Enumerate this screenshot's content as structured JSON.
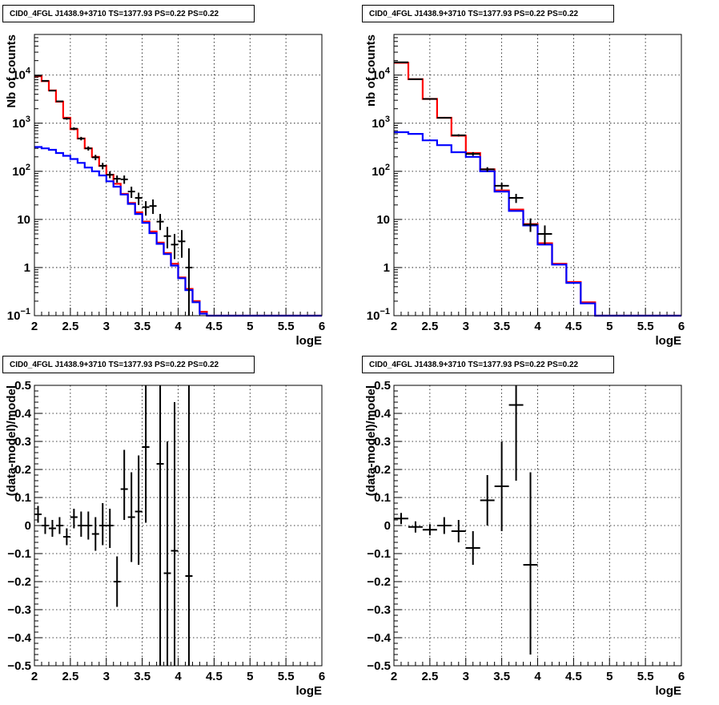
{
  "panels": [
    {
      "title": "CID0_4FGL J1438.9+3710 TS=1377.93 PS=0.22 PS=0.22",
      "chart_data": {
        "type": "line",
        "xlabel": "logE",
        "ylabel": "Nb of counts",
        "xlim": [
          2,
          6
        ],
        "ylim": [
          0.1,
          70000
        ],
        "yscale": "log",
        "grid": true,
        "xticks": [
          "2",
          "2.5",
          "3",
          "3.5",
          "4",
          "4.5",
          "5",
          "5.5",
          "6"
        ],
        "yticks": [
          {
            "v": 0.1,
            "mant": "10",
            "exp": "−1"
          },
          {
            "v": 1,
            "mant": "1",
            "exp": ""
          },
          {
            "v": 10,
            "mant": "10",
            "exp": ""
          },
          {
            "v": 100,
            "mant": "10",
            "exp": "2"
          },
          {
            "v": 1000,
            "mant": "10",
            "exp": "3"
          },
          {
            "v": 10000,
            "mant": "10",
            "exp": "4"
          }
        ],
        "bin_width": 0.1,
        "x_start": 2.0,
        "series": [
          {
            "color": "#ff0000",
            "step": true,
            "values": [
              9500,
              7500,
              4800,
              2800,
              1300,
              750,
              480,
              300,
              200,
              130,
              85,
              55,
              34,
              22,
              14,
              9,
              5.6,
              3.3,
              2.0,
              1.2,
              0.62,
              0.36,
              0.2,
              0.12,
              0.1,
              0.1,
              0.1,
              0.1,
              0.1,
              0.1,
              0.1,
              0.1,
              0.1,
              0.1,
              0.1,
              0.1,
              0.1,
              0.1,
              0.1,
              0.1
            ]
          },
          {
            "color": "#0000ff",
            "step": true,
            "values": [
              320,
              300,
              280,
              240,
              210,
              180,
              150,
              120,
              100,
              82,
              62,
              48,
              33,
              21,
              13,
              8.5,
              5.2,
              3.1,
              1.9,
              1.1,
              0.6,
              0.34,
              0.19,
              0.11,
              0.1,
              0.1,
              0.1,
              0.1,
              0.1,
              0.1,
              0.1,
              0.1,
              0.1,
              0.1,
              0.1,
              0.1,
              0.1,
              0.1,
              0.1,
              0.1
            ]
          },
          {
            "color": "#000000",
            "points": [
              {
                "x": 2.05,
                "y": 9700,
                "lo": 9500,
                "hi": 9900
              },
              {
                "x": 2.15,
                "y": 7600,
                "lo": 7400,
                "hi": 7800
              },
              {
                "x": 2.25,
                "y": 4750,
                "lo": 4600,
                "hi": 4900
              },
              {
                "x": 2.35,
                "y": 2850,
                "lo": 2750,
                "hi": 2950
              },
              {
                "x": 2.45,
                "y": 1250,
                "lo": 1180,
                "hi": 1320
              },
              {
                "x": 2.55,
                "y": 770,
                "lo": 720,
                "hi": 820
              },
              {
                "x": 2.65,
                "y": 480,
                "lo": 440,
                "hi": 520
              },
              {
                "x": 2.75,
                "y": 300,
                "lo": 270,
                "hi": 330
              },
              {
                "x": 2.85,
                "y": 195,
                "lo": 170,
                "hi": 220
              },
              {
                "x": 2.95,
                "y": 130,
                "lo": 110,
                "hi": 150
              },
              {
                "x": 3.05,
                "y": 85,
                "lo": 72,
                "hi": 100
              },
              {
                "x": 3.15,
                "y": 70,
                "lo": 58,
                "hi": 82
              },
              {
                "x": 3.25,
                "y": 68,
                "lo": 55,
                "hi": 82
              },
              {
                "x": 3.35,
                "y": 38,
                "lo": 28,
                "hi": 48
              },
              {
                "x": 3.45,
                "y": 28,
                "lo": 20,
                "hi": 36
              },
              {
                "x": 3.55,
                "y": 18,
                "lo": 12,
                "hi": 24
              },
              {
                "x": 3.65,
                "y": 19,
                "lo": 13,
                "hi": 26
              },
              {
                "x": 3.75,
                "y": 9,
                "lo": 6,
                "hi": 13
              },
              {
                "x": 3.85,
                "y": 4.5,
                "lo": 2.5,
                "hi": 7
              },
              {
                "x": 3.95,
                "y": 3.0,
                "lo": 1.5,
                "hi": 5
              },
              {
                "x": 4.05,
                "y": 3.5,
                "lo": 1.6,
                "hi": 6
              },
              {
                "x": 4.15,
                "y": 1.0,
                "lo": 0.1,
                "hi": 2.5
              }
            ]
          }
        ]
      }
    },
    {
      "title": "CID0_4FGL J1438.9+3710 TS=1377.93 PS=0.22 PS=0.22",
      "chart_data": {
        "type": "line",
        "xlabel": "logE",
        "ylabel": "nb of counts",
        "xlim": [
          2,
          6
        ],
        "ylim": [
          0.1,
          70000
        ],
        "yscale": "log",
        "grid": true,
        "xticks": [
          "2",
          "2.5",
          "3",
          "3.5",
          "4",
          "4.5",
          "5",
          "5.5",
          "6"
        ],
        "yticks": [
          {
            "v": 0.1,
            "mant": "10",
            "exp": "−1"
          },
          {
            "v": 1,
            "mant": "1",
            "exp": ""
          },
          {
            "v": 10,
            "mant": "10",
            "exp": ""
          },
          {
            "v": 100,
            "mant": "10",
            "exp": "2"
          },
          {
            "v": 1000,
            "mant": "10",
            "exp": "3"
          },
          {
            "v": 10000,
            "mant": "10",
            "exp": "4"
          }
        ],
        "bin_width": 0.2,
        "x_start": 2.0,
        "series": [
          {
            "color": "#ff0000",
            "step": true,
            "values": [
              18000,
              8200,
              3200,
              1300,
              550,
              240,
              110,
              40,
              16,
              8,
              3.2,
              1.2,
              0.5,
              0.19,
              0.1,
              0.1,
              0.1,
              0.1,
              0.1,
              0.1
            ]
          },
          {
            "color": "#0000ff",
            "step": true,
            "values": [
              650,
              600,
              440,
              350,
              250,
              200,
              100,
              38,
              15,
              7.5,
              3.0,
              1.15,
              0.48,
              0.18,
              0.1,
              0.1,
              0.1,
              0.1,
              0.1,
              0.1
            ]
          },
          {
            "color": "#000000",
            "points": [
              {
                "x": 2.1,
                "y": 18500,
                "lo": 18000,
                "hi": 19000
              },
              {
                "x": 2.3,
                "y": 8200,
                "lo": 8000,
                "hi": 8400
              },
              {
                "x": 2.5,
                "y": 3200,
                "lo": 3100,
                "hi": 3300
              },
              {
                "x": 2.7,
                "y": 1300,
                "lo": 1250,
                "hi": 1350
              },
              {
                "x": 2.9,
                "y": 560,
                "lo": 530,
                "hi": 590
              },
              {
                "x": 3.1,
                "y": 230,
                "lo": 210,
                "hi": 250
              },
              {
                "x": 3.3,
                "y": 110,
                "lo": 98,
                "hi": 122
              },
              {
                "x": 3.5,
                "y": 50,
                "lo": 42,
                "hi": 58
              },
              {
                "x": 3.7,
                "y": 28,
                "lo": 22,
                "hi": 34
              },
              {
                "x": 3.9,
                "y": 7.8,
                "lo": 5.5,
                "hi": 10.5
              },
              {
                "x": 4.1,
                "y": 5.0,
                "lo": 3.0,
                "hi": 7.5
              }
            ]
          }
        ]
      }
    },
    {
      "title": "CID0_4FGL J1438.9+3710 TS=1377.93 PS=0.22 PS=0.22",
      "chart_data": {
        "type": "scatter",
        "xlabel": "logE",
        "ylabel": "(data-model)/model",
        "xlim": [
          2,
          6
        ],
        "ylim": [
          -0.5,
          0.5
        ],
        "yscale": "linear",
        "grid": true,
        "xticks": [
          "2",
          "2.5",
          "3",
          "3.5",
          "4",
          "4.5",
          "5",
          "5.5",
          "6"
        ],
        "yticks": [
          {
            "v": -0.5,
            "label": "−0.5"
          },
          {
            "v": -0.4,
            "label": "−0.4"
          },
          {
            "v": -0.3,
            "label": "−0.3"
          },
          {
            "v": -0.2,
            "label": "−0.2"
          },
          {
            "v": -0.1,
            "label": "−0.1"
          },
          {
            "v": 0,
            "label": "0"
          },
          {
            "v": 0.1,
            "label": "0.1"
          },
          {
            "v": 0.2,
            "label": "0.2"
          },
          {
            "v": 0.3,
            "label": "0.3"
          },
          {
            "v": 0.4,
            "label": "0.4"
          },
          {
            "v": 0.5,
            "label": "0.5"
          }
        ],
        "xerr": 0.05,
        "points": [
          {
            "x": 2.05,
            "y": 0.04,
            "lo": 0.01,
            "hi": 0.07
          },
          {
            "x": 2.15,
            "y": 0.0,
            "lo": -0.03,
            "hi": 0.03
          },
          {
            "x": 2.25,
            "y": -0.01,
            "lo": -0.04,
            "hi": 0.02
          },
          {
            "x": 2.35,
            "y": 0.0,
            "lo": -0.03,
            "hi": 0.03
          },
          {
            "x": 2.45,
            "y": -0.04,
            "lo": -0.07,
            "hi": -0.01
          },
          {
            "x": 2.55,
            "y": 0.03,
            "lo": -0.01,
            "hi": 0.06
          },
          {
            "x": 2.65,
            "y": 0.0,
            "lo": -0.04,
            "hi": 0.05
          },
          {
            "x": 2.75,
            "y": 0.0,
            "lo": -0.05,
            "hi": 0.05
          },
          {
            "x": 2.85,
            "y": -0.03,
            "lo": -0.09,
            "hi": 0.03
          },
          {
            "x": 2.95,
            "y": 0.0,
            "lo": -0.07,
            "hi": 0.08
          },
          {
            "x": 3.05,
            "y": 0.0,
            "lo": -0.08,
            "hi": 0.06
          },
          {
            "x": 3.15,
            "y": -0.2,
            "lo": -0.29,
            "hi": -0.11
          },
          {
            "x": 3.25,
            "y": 0.13,
            "lo": 0.02,
            "hi": 0.27
          },
          {
            "x": 3.35,
            "y": 0.03,
            "lo": -0.13,
            "hi": 0.19
          },
          {
            "x": 3.45,
            "y": 0.05,
            "lo": -0.14,
            "hi": 0.25
          },
          {
            "x": 3.55,
            "y": 0.28,
            "lo": 0.01,
            "hi": 0.5
          },
          {
            "x": 3.75,
            "y": 0.22,
            "lo": -0.5,
            "hi": 0.5
          },
          {
            "x": 3.85,
            "y": -0.17,
            "lo": -0.5,
            "hi": 0.3
          },
          {
            "x": 3.95,
            "y": -0.09,
            "lo": -0.5,
            "hi": 0.44
          },
          {
            "x": 4.15,
            "y": -0.18,
            "lo": -0.5,
            "hi": 0.5
          }
        ]
      }
    },
    {
      "title": "CID0_4FGL J1438.9+3710 TS=1377.93 PS=0.22 PS=0.22",
      "chart_data": {
        "type": "scatter",
        "xlabel": "logE",
        "ylabel": "(data-model)/model",
        "xlim": [
          2,
          6
        ],
        "ylim": [
          -0.5,
          0.5
        ],
        "yscale": "linear",
        "grid": true,
        "xticks": [
          "2",
          "2.5",
          "3",
          "3.5",
          "4",
          "4.5",
          "5",
          "5.5",
          "6"
        ],
        "yticks": [
          {
            "v": -0.5,
            "label": "−0.5"
          },
          {
            "v": -0.4,
            "label": "−0.4"
          },
          {
            "v": -0.3,
            "label": "−0.3"
          },
          {
            "v": -0.2,
            "label": "−0.2"
          },
          {
            "v": -0.1,
            "label": "−0.1"
          },
          {
            "v": 0,
            "label": "0"
          },
          {
            "v": 0.1,
            "label": "0.1"
          },
          {
            "v": 0.2,
            "label": "0.2"
          },
          {
            "v": 0.3,
            "label": "0.3"
          },
          {
            "v": 0.4,
            "label": "0.4"
          },
          {
            "v": 0.5,
            "label": "0.5"
          }
        ],
        "xerr": 0.1,
        "points": [
          {
            "x": 2.1,
            "y": 0.025,
            "lo": 0.005,
            "hi": 0.045
          },
          {
            "x": 2.3,
            "y": -0.005,
            "lo": -0.025,
            "hi": 0.015
          },
          {
            "x": 2.5,
            "y": -0.015,
            "lo": -0.035,
            "hi": 0.005
          },
          {
            "x": 2.7,
            "y": 0.0,
            "lo": -0.03,
            "hi": 0.03
          },
          {
            "x": 2.9,
            "y": -0.02,
            "lo": -0.06,
            "hi": 0.02
          },
          {
            "x": 3.1,
            "y": -0.08,
            "lo": -0.14,
            "hi": -0.02
          },
          {
            "x": 3.3,
            "y": 0.09,
            "lo": 0.0,
            "hi": 0.18
          },
          {
            "x": 3.5,
            "y": 0.14,
            "lo": -0.02,
            "hi": 0.3
          },
          {
            "x": 3.7,
            "y": 0.43,
            "lo": 0.16,
            "hi": 0.5
          },
          {
            "x": 3.9,
            "y": -0.14,
            "lo": -0.46,
            "hi": 0.19
          }
        ]
      }
    }
  ]
}
